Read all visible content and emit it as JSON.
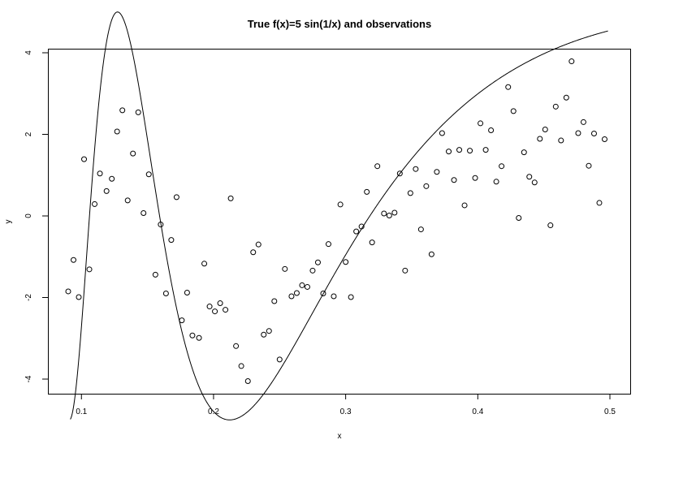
{
  "chart_data": {
    "type": "scatter",
    "title": "True f(x)=5 sin(1/x) and observations",
    "xlabel": "x",
    "ylabel": "y",
    "xlim": [
      0.09,
      0.5
    ],
    "ylim": [
      -4,
      4
    ],
    "xticks": [
      0.1,
      0.2,
      0.3,
      0.4,
      0.5
    ],
    "yticks": [
      -4,
      -2,
      0,
      2,
      4
    ],
    "xtick_labels": [
      "0.1",
      "0.2",
      "0.3",
      "0.4",
      "0.5"
    ],
    "ytick_labels": [
      "-4",
      "-2",
      "0",
      "2",
      "4"
    ],
    "grid": false,
    "legend": false,
    "series": [
      {
        "kind": "curve",
        "function": "y = 5 sin(1/x)"
      },
      {
        "kind": "points",
        "marker": "open-circle",
        "points": [
          [
            0.09,
            -1.85
          ],
          [
            0.094,
            -1.08
          ],
          [
            0.098,
            -1.99
          ],
          [
            0.102,
            1.39
          ],
          [
            0.106,
            -1.31
          ],
          [
            0.11,
            0.29
          ],
          [
            0.114,
            1.04
          ],
          [
            0.119,
            0.61
          ],
          [
            0.123,
            0.91
          ],
          [
            0.127,
            2.07
          ],
          [
            0.131,
            2.59
          ],
          [
            0.135,
            0.38
          ],
          [
            0.139,
            1.53
          ],
          [
            0.143,
            2.54
          ],
          [
            0.147,
            0.07
          ],
          [
            0.151,
            1.02
          ],
          [
            0.156,
            -1.44
          ],
          [
            0.16,
            -0.21
          ],
          [
            0.164,
            -1.9
          ],
          [
            0.168,
            -0.59
          ],
          [
            0.172,
            0.46
          ],
          [
            0.176,
            -2.56
          ],
          [
            0.18,
            -1.88
          ],
          [
            0.184,
            -2.93
          ],
          [
            0.189,
            -2.99
          ],
          [
            0.193,
            -1.17
          ],
          [
            0.197,
            -2.22
          ],
          [
            0.201,
            -2.34
          ],
          [
            0.205,
            -2.14
          ],
          [
            0.209,
            -2.3
          ],
          [
            0.213,
            0.43
          ],
          [
            0.217,
            -3.19
          ],
          [
            0.221,
            -3.68
          ],
          [
            0.226,
            -4.05
          ],
          [
            0.23,
            -0.89
          ],
          [
            0.234,
            -0.7
          ],
          [
            0.238,
            -2.91
          ],
          [
            0.242,
            -2.82
          ],
          [
            0.246,
            -2.09
          ],
          [
            0.25,
            -3.52
          ],
          [
            0.254,
            -1.3
          ],
          [
            0.259,
            -1.97
          ],
          [
            0.263,
            -1.89
          ],
          [
            0.267,
            -1.7
          ],
          [
            0.271,
            -1.74
          ],
          [
            0.275,
            -1.34
          ],
          [
            0.279,
            -1.14
          ],
          [
            0.283,
            -1.9
          ],
          [
            0.287,
            -0.69
          ],
          [
            0.291,
            -1.97
          ],
          [
            0.296,
            0.28
          ],
          [
            0.3,
            -1.13
          ],
          [
            0.304,
            -1.99
          ],
          [
            0.308,
            -0.38
          ],
          [
            0.312,
            -0.26
          ],
          [
            0.316,
            0.59
          ],
          [
            0.32,
            -0.65
          ],
          [
            0.324,
            1.22
          ],
          [
            0.329,
            0.06
          ],
          [
            0.333,
            0.01
          ],
          [
            0.337,
            0.08
          ],
          [
            0.341,
            1.04
          ],
          [
            0.345,
            -1.34
          ],
          [
            0.349,
            0.56
          ],
          [
            0.353,
            1.15
          ],
          [
            0.357,
            -0.33
          ],
          [
            0.361,
            0.73
          ],
          [
            0.365,
            -0.94
          ],
          [
            0.369,
            1.08
          ],
          [
            0.373,
            2.03
          ],
          [
            0.378,
            1.58
          ],
          [
            0.382,
            0.88
          ],
          [
            0.386,
            1.62
          ],
          [
            0.39,
            0.26
          ],
          [
            0.394,
            1.6
          ],
          [
            0.398,
            0.93
          ],
          [
            0.402,
            2.27
          ],
          [
            0.406,
            1.62
          ],
          [
            0.41,
            2.1
          ],
          [
            0.414,
            0.84
          ],
          [
            0.418,
            1.22
          ],
          [
            0.423,
            3.16
          ],
          [
            0.427,
            2.57
          ],
          [
            0.431,
            -0.05
          ],
          [
            0.435,
            1.56
          ],
          [
            0.439,
            0.96
          ],
          [
            0.443,
            0.82
          ],
          [
            0.447,
            1.89
          ],
          [
            0.451,
            2.12
          ],
          [
            0.455,
            -0.23
          ],
          [
            0.459,
            2.68
          ],
          [
            0.463,
            1.85
          ],
          [
            0.467,
            2.9
          ],
          [
            0.471,
            3.79
          ],
          [
            0.476,
            2.03
          ],
          [
            0.48,
            2.3
          ],
          [
            0.484,
            1.23
          ],
          [
            0.488,
            2.02
          ],
          [
            0.492,
            0.32
          ],
          [
            0.496,
            1.88
          ]
        ]
      }
    ]
  }
}
